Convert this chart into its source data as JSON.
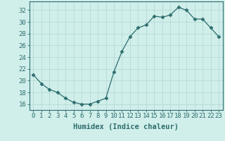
{
  "x": [
    0,
    1,
    2,
    3,
    4,
    5,
    6,
    7,
    8,
    9,
    10,
    11,
    12,
    13,
    14,
    15,
    16,
    17,
    18,
    19,
    20,
    21,
    22,
    23
  ],
  "y": [
    21,
    19.5,
    18.5,
    18,
    17,
    16.3,
    16,
    16,
    16.5,
    17,
    21.5,
    25,
    27.5,
    29,
    29.5,
    31,
    30.8,
    31.2,
    32.5,
    32,
    30.5,
    30.5,
    29,
    27.5
  ],
  "line_color": "#2d6e6e",
  "marker": "D",
  "marker_size": 2.5,
  "bg_color": "#d0eeea",
  "grid_color": "#b0d8d4",
  "xlabel": "Humidex (Indice chaleur)",
  "ylim": [
    15.0,
    33.5
  ],
  "xlim": [
    -0.5,
    23.5
  ],
  "yticks": [
    16,
    18,
    20,
    22,
    24,
    26,
    28,
    30,
    32
  ],
  "xticks": [
    0,
    1,
    2,
    3,
    4,
    5,
    6,
    7,
    8,
    9,
    10,
    11,
    12,
    13,
    14,
    15,
    16,
    17,
    18,
    19,
    20,
    21,
    22,
    23
  ],
  "xtick_labels": [
    "0",
    "1",
    "2",
    "3",
    "4",
    "5",
    "6",
    "7",
    "8",
    "9",
    "10",
    "11",
    "12",
    "13",
    "14",
    "15",
    "16",
    "17",
    "18",
    "19",
    "20",
    "21",
    "22",
    "23"
  ],
  "tick_color": "#2d6e6e",
  "label_fontsize": 7.5,
  "tick_fontsize": 6.5
}
